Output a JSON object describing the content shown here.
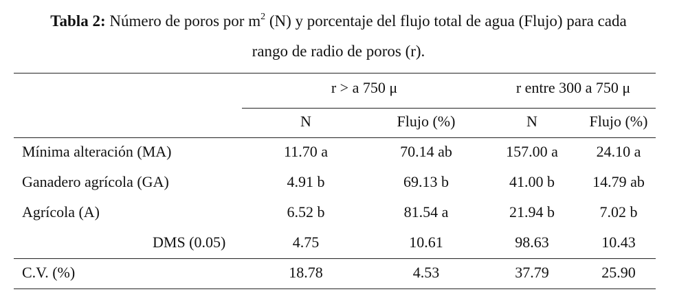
{
  "caption": {
    "label": "Tabla 2:",
    "text_before_sup": "Número de poros por m",
    "sup": "2",
    "text_after_sup": " (N) y porcentaje del flujo total de agua (Flujo) para cada",
    "line2": "rango de radio de poros (r)."
  },
  "header": {
    "group1": "r > a 750 μ",
    "group2": "r entre 300 a 750 μ",
    "col_n": "N",
    "col_flujo": "Flujo (%)"
  },
  "rows": [
    {
      "label": "Mínima alteración (MA)",
      "n1": "11.70 a",
      "f1": "70.14 ab",
      "n2": "157.00 a",
      "f2": "24.10 a"
    },
    {
      "label": "Ganadero agrícola (GA)",
      "n1": "4.91 b",
      "f1": "69.13 b",
      "n2": "41.00 b",
      "f2": "14.79 ab"
    },
    {
      "label": "Agrícola (A)",
      "n1": "6.52 b",
      "f1": "81.54 a",
      "n2": "21.94 b",
      "f2": "7.02 b"
    }
  ],
  "dms": {
    "label": "DMS (0.05)",
    "n1": "4.75",
    "f1": "10.61",
    "n2": "98.63",
    "f2": "10.43"
  },
  "cv": {
    "label": "C.V. (%)",
    "n1": "18.78",
    "f1": "4.53",
    "n2": "37.79",
    "f2": "25.90"
  }
}
